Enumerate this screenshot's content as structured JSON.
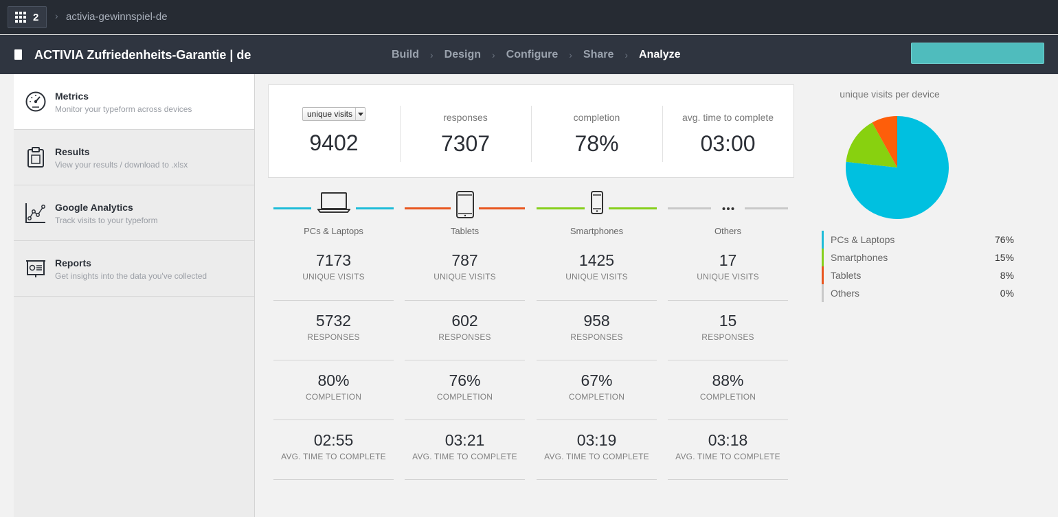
{
  "topbar": {
    "apps_count": "2",
    "workspace": "activia-gewinnspiel-de"
  },
  "header": {
    "title": "ACTIVIA Zufriedenheits-Garantie | de",
    "steps": [
      "Build",
      "Design",
      "Configure",
      "Share",
      "Analyze"
    ],
    "active_step": "Analyze",
    "button_color": "#4fbcbd"
  },
  "sidebar": {
    "items": [
      {
        "title": "Metrics",
        "subtitle": "Monitor your typeform across devices",
        "icon": "speedometer-icon"
      },
      {
        "title": "Results",
        "subtitle": "View your results / download to .xlsx",
        "icon": "clipboard-icon"
      },
      {
        "title": "Google Analytics",
        "subtitle": "Track visits to your typeform",
        "icon": "analytics-chart-icon"
      },
      {
        "title": "Reports",
        "subtitle": "Get insights into the data you've collected",
        "icon": "presentation-icon"
      }
    ]
  },
  "summary": {
    "select_value": "unique visits",
    "visits": "9402",
    "responses_label": "responses",
    "responses": "7307",
    "completion_label": "completion",
    "completion": "78%",
    "avg_label": "avg. time to complete",
    "avg_time": "03:00"
  },
  "metric_labels": {
    "visits": "UNIQUE VISITS",
    "responses": "RESPONSES",
    "completion": "COMPLETION",
    "avg": "AVG. TIME TO COMPLETE"
  },
  "devices": [
    {
      "name": "PCs & Laptops",
      "icon": "laptop-icon",
      "color": "#1ebcd8",
      "visits": "7173",
      "responses": "5732",
      "completion": "80%",
      "avg": "02:55"
    },
    {
      "name": "Tablets",
      "icon": "tablet-icon",
      "color": "#e8561f",
      "visits": "787",
      "responses": "602",
      "completion": "76%",
      "avg": "03:21"
    },
    {
      "name": "Smartphones",
      "icon": "smartphone-icon",
      "color": "#86cf1c",
      "visits": "1425",
      "responses": "958",
      "completion": "67%",
      "avg": "03:19"
    },
    {
      "name": "Others",
      "icon": "more-dots-icon",
      "color": "#c9c9c9",
      "visits": "17",
      "responses": "15",
      "completion": "88%",
      "avg": "03:18"
    }
  ],
  "chart_data": {
    "type": "pie",
    "title": "unique visits per device",
    "slices": [
      {
        "label": "PCs & Laptops",
        "value": 76,
        "display": "76%",
        "color": "#00c0e0"
      },
      {
        "label": "Smartphones",
        "value": 15,
        "display": "15%",
        "color": "#88d10f"
      },
      {
        "label": "Tablets",
        "value": 8,
        "display": "8%",
        "color": "#fe5e0a"
      },
      {
        "label": "Others",
        "value": 0,
        "display": "0%",
        "color": "#cccccc"
      }
    ]
  }
}
